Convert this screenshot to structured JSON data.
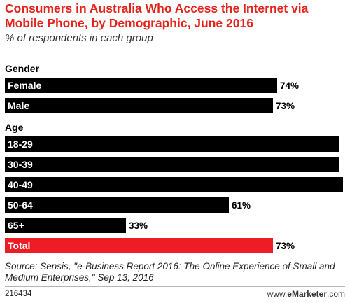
{
  "title": "Consumers in Australia Who Access the Internet via Mobile Phone, by Demographic, June 2016",
  "subtitle": "% of respondents in each group",
  "chart_data": {
    "type": "bar",
    "orientation": "horizontal",
    "title": "Consumers in Australia Who Access the Internet via Mobile Phone, by Demographic, June 2016",
    "subtitle": "% of respondents in each group",
    "value_suffix": "%",
    "xlim": [
      0,
      92
    ],
    "grid": false,
    "legend": "none",
    "colors": {
      "default": "#000000",
      "highlight": "#ee1c25"
    },
    "groups": [
      {
        "label": "Gender",
        "bars": [
          {
            "category": "Female",
            "value": 74
          },
          {
            "category": "Male",
            "value": 73
          }
        ]
      },
      {
        "label": "Age",
        "bars": [
          {
            "category": "18-29",
            "value": 91
          },
          {
            "category": "30-39",
            "value": 91
          },
          {
            "category": "40-49",
            "value": 92
          },
          {
            "category": "50-64",
            "value": 61
          },
          {
            "category": "65+",
            "value": 33
          }
        ]
      },
      {
        "label": "",
        "bars": [
          {
            "category": "Total",
            "value": 73,
            "highlight": true
          }
        ]
      }
    ]
  },
  "source": "Source: Sensis, \"e-Business Report 2016: The Online Experience of Small and Medium Enterprises,\" Sep 13, 2016",
  "footer": {
    "chart_id": "216434",
    "brand_prefix": "www.",
    "brand_name": "eMarketer",
    "brand_suffix": ".com"
  }
}
